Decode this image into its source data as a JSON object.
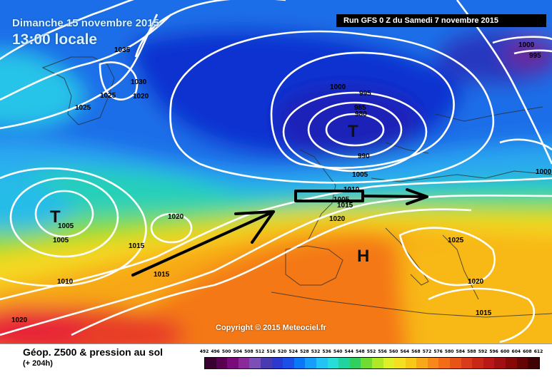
{
  "title": {
    "date": "Dimanche 15 novembre 2015",
    "time": "13:00 locale"
  },
  "run_info": "Run GFS 0 Z du Samedi 7 novembre 2015",
  "copyright": "Copyright © 2015 Meteociel.fr",
  "footer": {
    "title": "Géop. Z500 & pression au sol",
    "subtitle": "(+ 204h)"
  },
  "pressure_labels": [
    "1035",
    "1030",
    "1025",
    "1020",
    "1025",
    "1000",
    "995",
    "985",
    "980",
    "1005",
    "990",
    "1005",
    "1010",
    "1015",
    "1020",
    "1000",
    "995",
    "1000",
    "1005",
    "1020",
    "1015",
    "1015",
    "1010",
    "1020",
    "1025",
    "1020",
    "1015",
    "1005"
  ],
  "pressure_systems": [
    "T",
    "T",
    "H"
  ],
  "scale": {
    "labels": [
      "492",
      "496",
      "500",
      "504",
      "508",
      "512",
      "516",
      "520",
      "524",
      "528",
      "532",
      "536",
      "540",
      "544",
      "548",
      "552",
      "556",
      "560",
      "564",
      "568",
      "572",
      "576",
      "580",
      "584",
      "588",
      "592",
      "596",
      "600",
      "604",
      "608",
      "612"
    ],
    "colors": [
      "#3a0030",
      "#5a0050",
      "#7a0a7a",
      "#8a2a9a",
      "#7a50b8",
      "#4a3ab0",
      "#2a3ad0",
      "#1a50e8",
      "#0a78f4",
      "#14a0f8",
      "#22c4f4",
      "#28dcd8",
      "#20d4a0",
      "#30d060",
      "#70dc30",
      "#b0e828",
      "#e0f028",
      "#f4e020",
      "#f8c818",
      "#f8a818",
      "#f88818",
      "#f46c18",
      "#e85418",
      "#d83c18",
      "#c82818",
      "#b81818",
      "#a01010",
      "#880808",
      "#680404",
      "#400202"
    ]
  },
  "colors": {
    "arrow": "#000000",
    "isobar": "#ffffff"
  }
}
